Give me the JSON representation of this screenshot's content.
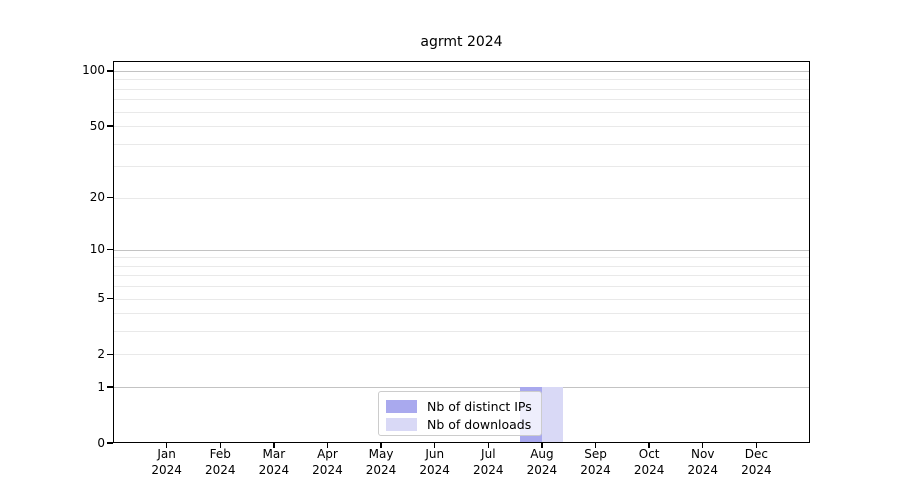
{
  "chart_data": {
    "type": "bar",
    "title": "agrmt 2024",
    "categories": [
      "Jan",
      "Feb",
      "Mar",
      "Apr",
      "May",
      "Jun",
      "Jul",
      "Aug",
      "Sep",
      "Oct",
      "Nov",
      "Dec"
    ],
    "year_label": "2024",
    "series": [
      {
        "name": "Nb of distinct IPs",
        "color": "#a9a9ee",
        "values": [
          0,
          0,
          0,
          0,
          0,
          0,
          0,
          1,
          0,
          0,
          0,
          0
        ]
      },
      {
        "name": "Nb of downloads",
        "color": "#d9d9f6",
        "values": [
          0,
          0,
          0,
          0,
          0,
          0,
          0,
          1,
          0,
          0,
          0,
          0
        ]
      }
    ],
    "xlabel": "",
    "ylabel": "",
    "yscale": "log1p",
    "yticks": [
      0,
      1,
      2,
      5,
      10,
      20,
      50,
      100
    ],
    "ylim": [
      0,
      113
    ],
    "grid": true,
    "legend_position": "lower-center-inside",
    "colors": {
      "major_grid": "#c3c3c3",
      "minor_grid": "#e9e9e9",
      "spine": "#000000",
      "text": "#000000"
    }
  }
}
